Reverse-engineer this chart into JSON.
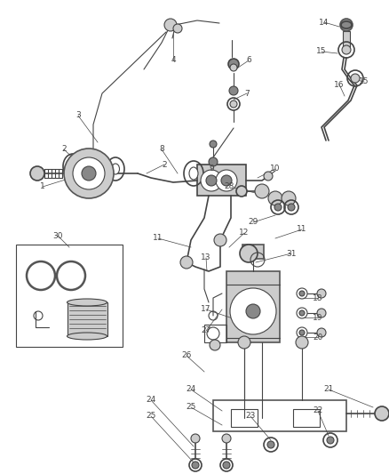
{
  "background_color": "#ffffff",
  "figsize": [
    4.38,
    5.33
  ],
  "dpi": 100,
  "line_color": "#444444",
  "label_color": "#444444",
  "label_fontsize": 6.5,
  "gray_fill": "#888888",
  "light_gray": "#cccccc",
  "dark_gray": "#555555"
}
